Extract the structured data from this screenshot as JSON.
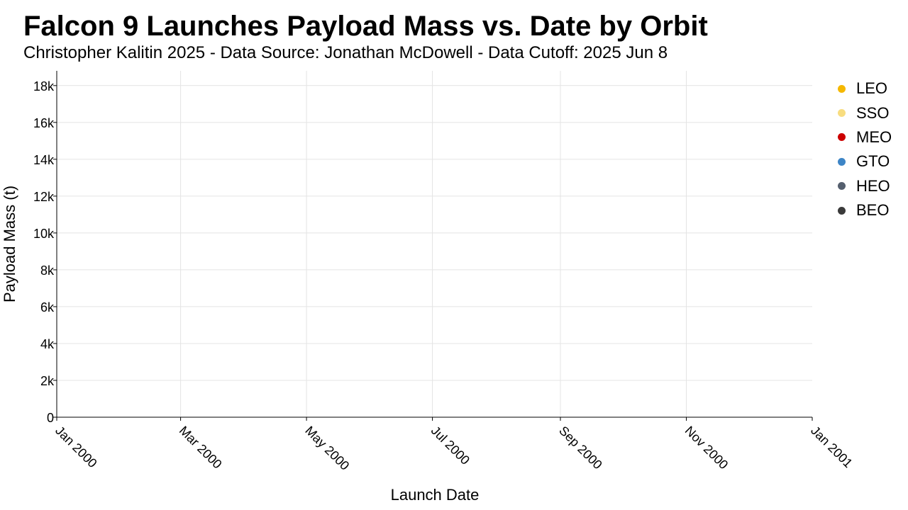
{
  "chart_data": {
    "type": "scatter",
    "title": "Falcon 9 Launches Payload Mass vs. Date by Orbit",
    "subtitle": "Christopher Kalitin 2025 - Data Source: Jonathan McDowell - Data Cutoff: 2025 Jun 8",
    "xlabel": "Launch Date",
    "ylabel": "Payload Mass (t)",
    "x_axis_type": "date",
    "xlim": [
      "2000-01-01",
      "2001-01-01"
    ],
    "x_ticks": [
      {
        "value": "2000-01-01",
        "label": "Jan 2000"
      },
      {
        "value": "2000-03-01",
        "label": "Mar 2000"
      },
      {
        "value": "2000-05-01",
        "label": "May 2000"
      },
      {
        "value": "2000-07-01",
        "label": "Jul 2000"
      },
      {
        "value": "2000-09-01",
        "label": "Sep 2000"
      },
      {
        "value": "2000-11-01",
        "label": "Nov 2000"
      },
      {
        "value": "2001-01-01",
        "label": "Jan 2001"
      }
    ],
    "ylim": [
      0,
      18800
    ],
    "y_ticks": [
      {
        "value": 0,
        "label": "0"
      },
      {
        "value": 2000,
        "label": "2k"
      },
      {
        "value": 4000,
        "label": "4k"
      },
      {
        "value": 6000,
        "label": "6k"
      },
      {
        "value": 8000,
        "label": "8k"
      },
      {
        "value": 10000,
        "label": "10k"
      },
      {
        "value": 12000,
        "label": "12k"
      },
      {
        "value": 14000,
        "label": "14k"
      },
      {
        "value": 16000,
        "label": "16k"
      },
      {
        "value": 18000,
        "label": "18k"
      }
    ],
    "grid": true,
    "legend_position": "right",
    "series": [
      {
        "name": "LEO",
        "color": "#F5B800",
        "points": []
      },
      {
        "name": "SSO",
        "color": "#F8DD80",
        "points": []
      },
      {
        "name": "MEO",
        "color": "#CC0000",
        "points": []
      },
      {
        "name": "GTO",
        "color": "#3D85C6",
        "points": []
      },
      {
        "name": "HEO",
        "color": "#555F6E",
        "points": []
      },
      {
        "name": "BEO",
        "color": "#3A3A3A",
        "points": []
      }
    ]
  }
}
